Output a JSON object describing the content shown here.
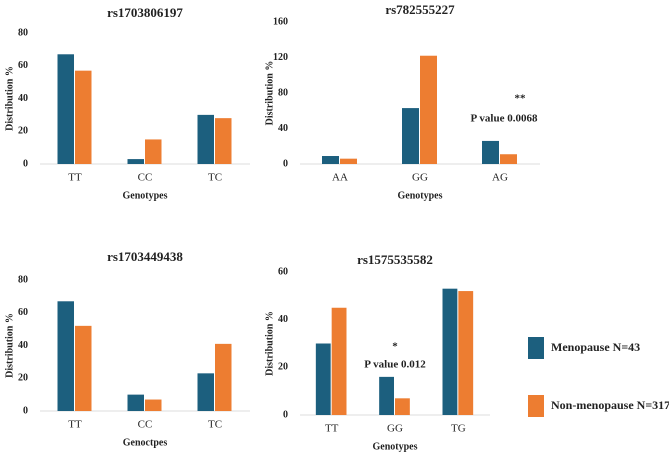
{
  "chart_data": [
    {
      "type": "bar",
      "title": "rs1703806197",
      "xlabel": "Genotypes",
      "ylabel": "Distribution %",
      "categories": [
        "TT",
        "CC",
        "TC"
      ],
      "ylim": [
        0,
        80
      ],
      "yticks": [
        0,
        20,
        40,
        60,
        80
      ],
      "series": [
        {
          "color": "#1c5f7e",
          "values": [
            67,
            3,
            30
          ]
        },
        {
          "color": "#ed7d31",
          "values": [
            57,
            15,
            28
          ]
        }
      ]
    },
    {
      "type": "bar",
      "title": "rs782555227",
      "xlabel": "Genotypes",
      "ylabel": "Distribution %",
      "categories": [
        "AA",
        "GG",
        "AG"
      ],
      "ylim": [
        0,
        160
      ],
      "yticks": [
        0,
        40,
        80,
        120,
        160
      ],
      "series": [
        {
          "color": "#1c5f7e",
          "values": [
            9,
            63,
            26
          ]
        },
        {
          "color": "#ed7d31",
          "values": [
            6,
            122,
            11
          ]
        }
      ],
      "annotations": [
        "**",
        "P value 0.0068"
      ]
    },
    {
      "type": "bar",
      "title": "rs1703449438",
      "xlabel": "Genoctpes",
      "ylabel": "Distribution %",
      "categories": [
        "TT",
        "CC",
        "TC"
      ],
      "ylim": [
        0,
        80
      ],
      "yticks": [
        0,
        20,
        40,
        60,
        80
      ],
      "series": [
        {
          "color": "#1c5f7e",
          "values": [
            67,
            10,
            23
          ]
        },
        {
          "color": "#ed7d31",
          "values": [
            52,
            7,
            41
          ]
        }
      ]
    },
    {
      "type": "bar",
      "title": "rs1575535582",
      "xlabel": "Genotypes",
      "ylabel": "Distribution %",
      "categories": [
        "TT",
        "GG",
        "TG"
      ],
      "ylim": [
        0,
        60
      ],
      "yticks": [
        0,
        20,
        40,
        60
      ],
      "series": [
        {
          "name": "Menopause N=43",
          "color": "#1c5f7e",
          "values": [
            30,
            16,
            53
          ]
        },
        {
          "name": "Non-menopause N=317",
          "color": "#ed7d31",
          "values": [
            45,
            7,
            52
          ]
        }
      ],
      "annotations": [
        "*",
        "P value 0.012"
      ]
    }
  ]
}
